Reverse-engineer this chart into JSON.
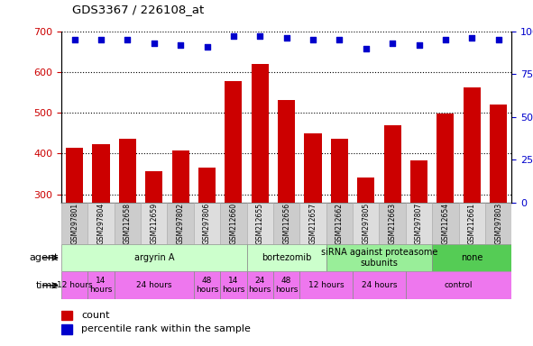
{
  "title": "GDS3367 / 226108_at",
  "samples": [
    "GSM297801",
    "GSM297804",
    "GSM212658",
    "GSM212659",
    "GSM297802",
    "GSM297806",
    "GSM212660",
    "GSM212655",
    "GSM212656",
    "GSM212657",
    "GSM212662",
    "GSM297805",
    "GSM212663",
    "GSM297807",
    "GSM212654",
    "GSM212661",
    "GSM297803"
  ],
  "counts": [
    415,
    422,
    435,
    357,
    407,
    365,
    577,
    620,
    530,
    450,
    437,
    342,
    470,
    382,
    498,
    563,
    521
  ],
  "percentiles": [
    95,
    95,
    95,
    93,
    92,
    91,
    97,
    97,
    96,
    95,
    95,
    90,
    93,
    92,
    95,
    96,
    95
  ],
  "bar_color": "#cc0000",
  "dot_color": "#0000cc",
  "ylim_left": [
    280,
    700
  ],
  "ylim_right": [
    0,
    100
  ],
  "yticks_left": [
    300,
    400,
    500,
    600,
    700
  ],
  "yticks_right": [
    0,
    25,
    50,
    75,
    100
  ],
  "agent_groups": [
    {
      "label": "argyrin A",
      "start": 0,
      "end": 7,
      "color": "#ccffcc"
    },
    {
      "label": "bortezomib",
      "start": 7,
      "end": 10,
      "color": "#ccffcc"
    },
    {
      "label": "siRNA against proteasome\nsubunits",
      "start": 10,
      "end": 14,
      "color": "#99ee99"
    },
    {
      "label": "none",
      "start": 14,
      "end": 17,
      "color": "#55cc55"
    }
  ],
  "time_groups": [
    {
      "label": "12 hours",
      "start": 0,
      "end": 1,
      "color": "#ee77ee"
    },
    {
      "label": "14\nhours",
      "start": 1,
      "end": 2,
      "color": "#ee77ee"
    },
    {
      "label": "24 hours",
      "start": 2,
      "end": 5,
      "color": "#ee77ee"
    },
    {
      "label": "48\nhours",
      "start": 5,
      "end": 6,
      "color": "#ee77ee"
    },
    {
      "label": "14\nhours",
      "start": 6,
      "end": 7,
      "color": "#ee77ee"
    },
    {
      "label": "24\nhours",
      "start": 7,
      "end": 8,
      "color": "#ee77ee"
    },
    {
      "label": "48\nhours",
      "start": 8,
      "end": 9,
      "color": "#ee77ee"
    },
    {
      "label": "12 hours",
      "start": 9,
      "end": 11,
      "color": "#ee77ee"
    },
    {
      "label": "24 hours",
      "start": 11,
      "end": 13,
      "color": "#ee77ee"
    },
    {
      "label": "control",
      "start": 13,
      "end": 17,
      "color": "#ee77ee"
    }
  ],
  "legend_count_color": "#cc0000",
  "legend_pct_color": "#0000cc",
  "tick_label_color_left": "#cc0000",
  "tick_label_color_right": "#0000cc",
  "sample_bg_even": "#cccccc",
  "sample_bg_odd": "#dddddd"
}
